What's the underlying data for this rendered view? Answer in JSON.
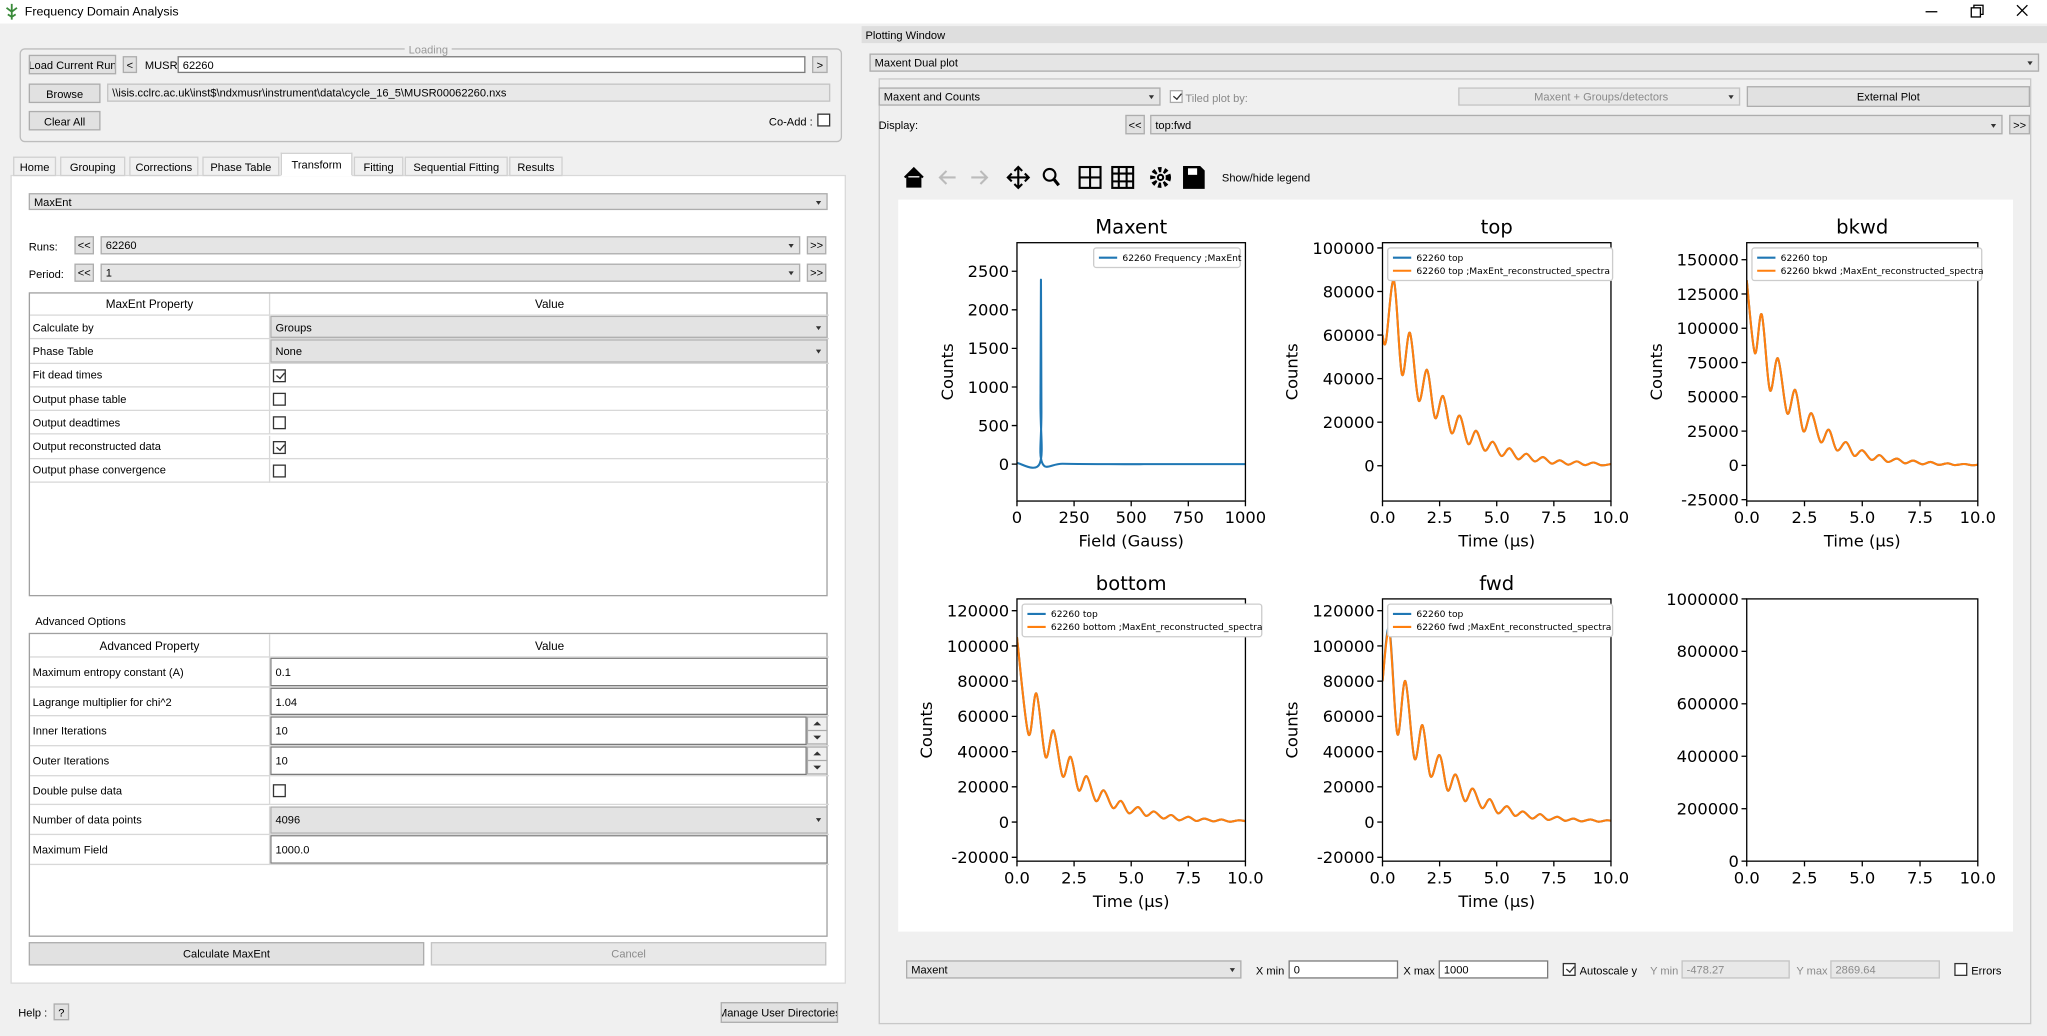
{
  "window_title": "Frequency Domain Analysis",
  "loading": {
    "title": "Loading",
    "load_button": "Load Current Run",
    "prev": "<",
    "instrument": "MUSR",
    "run": "62260",
    "next": ">",
    "browse": "Browse",
    "path": "\\\\isis.cclrc.ac.uk\\inst$\\ndxmusr\\instrument\\data\\cycle_16_5\\MUSR00062260.nxs",
    "clear": "Clear All",
    "coadd": "Co-Add :",
    "coadd_checked": false
  },
  "tabs": [
    "Home",
    "Grouping",
    "Corrections",
    "Phase Table",
    "Transform",
    "Fitting",
    "Sequential Fitting",
    "Results"
  ],
  "transform": {
    "method": "MaxEnt",
    "runs": {
      "label": "Runs:",
      "prev": "<<",
      "value": "62260",
      "next": ">>"
    },
    "period": {
      "label": "Period:",
      "prev": "<<",
      "value": "1",
      "next": ">>"
    },
    "properties": {
      "headers": [
        "MaxEnt Property",
        "Value"
      ],
      "rows": [
        {
          "name": "Calculate by",
          "widget": "combo",
          "value": "Groups"
        },
        {
          "name": "Phase Table",
          "widget": "combo",
          "value": "None"
        },
        {
          "name": "Fit dead times",
          "widget": "check",
          "checked": true
        },
        {
          "name": "Output phase table",
          "widget": "check",
          "checked": false
        },
        {
          "name": "Output deadtimes",
          "widget": "check",
          "checked": false
        },
        {
          "name": "Output reconstructed data",
          "widget": "check",
          "checked": true
        },
        {
          "name": "Output phase convergence",
          "widget": "check",
          "checked": false
        }
      ]
    },
    "advanced": {
      "title": "Advanced Options",
      "headers": [
        "Advanced Property",
        "Value"
      ],
      "rows": [
        {
          "name": "Maximum entropy constant (A)",
          "widget": "text",
          "value": "0.1"
        },
        {
          "name": "Lagrange multiplier for chi^2",
          "widget": "text",
          "value": "1.04"
        },
        {
          "name": "Inner Iterations",
          "widget": "spin",
          "value": "10"
        },
        {
          "name": "Outer Iterations",
          "widget": "spin",
          "value": "10"
        },
        {
          "name": "Double pulse data",
          "widget": "check",
          "checked": false
        },
        {
          "name": "Number of data points",
          "widget": "combo",
          "value": "4096"
        },
        {
          "name": "Maximum Field",
          "widget": "text",
          "value": "1000.0"
        }
      ]
    },
    "calculate": "Calculate MaxEnt",
    "cancel": "Cancel"
  },
  "help": {
    "label": "Help :",
    "button": "?"
  },
  "manage_dirs": "Manage User Directories",
  "plotting_window": {
    "title": "Plotting Window",
    "mode": "Maxent Dual plot",
    "plot_type": "Maxent and Counts",
    "tiled_checked": true,
    "tiled_label": "Tiled plot by:",
    "tiled_value": "Maxent + Groups/detectors",
    "external": "External Plot",
    "display_label": "Display:",
    "display_prev": "<<",
    "display_value": "top:fwd",
    "display_next": ">>",
    "legend_toggle": "Show/hide legend",
    "controls": {
      "axis": "Maxent",
      "xmin_label": "X min",
      "xmin": "0",
      "xmax_label": "X max",
      "xmax": "1000",
      "autoscale_checked": true,
      "autoscale": "Autoscale y",
      "ymin_label": "Y min",
      "ymin": "-478.27",
      "ymax_label": "Y max",
      "ymax": "2869.64",
      "errors_checked": false,
      "errors": "Errors"
    }
  },
  "chart_data": [
    {
      "type": "line",
      "title": "Maxent",
      "xlabel": "Field (Gauss)",
      "ylabel": "Counts",
      "legend": "upper right",
      "x": [
        0,
        100,
        103,
        105,
        107,
        110,
        200,
        400,
        600,
        800,
        1000
      ],
      "xlim": [
        0,
        1000
      ],
      "xticks": [
        0,
        250,
        500,
        750,
        1000
      ],
      "ylim": [
        -478.27,
        2869.64
      ],
      "yticks": [
        0,
        500,
        1000,
        1500,
        2000,
        2500
      ],
      "series": [
        {
          "name": "62260 Frequency ;MaxEnt",
          "color": "#1f77b4",
          "values": [
            15,
            10,
            800,
            2390,
            700,
            20,
            5,
            0,
            0,
            0,
            0
          ]
        }
      ]
    },
    {
      "type": "line",
      "title": "top",
      "xlabel": "Time (μs)",
      "ylabel": "Counts",
      "legend": "upper left",
      "x": [
        0,
        0.15,
        0.5,
        0.85,
        1.2,
        1.58,
        1.95,
        2.3,
        2.65,
        3.02,
        3.38,
        3.75,
        4.1,
        4.47,
        4.83,
        5.2,
        5.56,
        5.93,
        6.3,
        6.66,
        7.03,
        7.4,
        7.76,
        8.13,
        8.5,
        8.86,
        9.23,
        9.6,
        10
      ],
      "xlim": [
        0,
        10
      ],
      "xticks": [
        {
          "value": 0,
          "label": "0.0"
        },
        2.5,
        {
          "value": 5,
          "label": "5.0"
        },
        7.5,
        {
          "value": 10,
          "label": "10.0"
        }
      ],
      "ylim": [
        -16200,
        102400
      ],
      "yticks": [
        0,
        20000,
        40000,
        60000,
        80000,
        100000
      ],
      "series": [
        {
          "name": "62260 top",
          "color": "#1f77b4",
          "values": [
            60000,
            57000,
            85000,
            42000,
            61000,
            30000,
            44000,
            22000,
            32000,
            15000,
            23000,
            10000,
            16000,
            7000,
            11000,
            4500,
            8000,
            3000,
            5500,
            2000,
            4000,
            1000,
            2500,
            500,
            2000,
            300,
            1500,
            200,
            800
          ]
        },
        {
          "name": "62260 top ;MaxEnt_reconstructed_spectra",
          "color": "#ff7f0e",
          "values": [
            60000,
            57000,
            85000,
            42000,
            61000,
            30000,
            44000,
            22000,
            32000,
            15000,
            23000,
            10000,
            16000,
            7000,
            11000,
            4500,
            8000,
            3000,
            5500,
            2000,
            4000,
            1000,
            2500,
            500,
            2000,
            300,
            1500,
            200,
            800
          ]
        }
      ]
    },
    {
      "type": "line",
      "title": "bkwd",
      "xlabel": "Time (μs)",
      "ylabel": "Counts",
      "legend": "upper left",
      "x": [
        0,
        0.35,
        0.65,
        1.0,
        1.35,
        1.75,
        2.1,
        2.45,
        2.8,
        3.2,
        3.55,
        3.9,
        4.3,
        4.65,
        5.0,
        5.4,
        5.75,
        6.1,
        6.5,
        6.85,
        7.2,
        7.6,
        7.95,
        8.3,
        8.7,
        9.0,
        9.4,
        9.75,
        10
      ],
      "xlim": [
        0,
        10
      ],
      "xticks": [
        {
          "value": 0,
          "label": "0.0"
        },
        2.5,
        {
          "value": 5,
          "label": "5.0"
        },
        7.5,
        {
          "value": 10,
          "label": "10.0"
        }
      ],
      "ylim": [
        -26000,
        162400
      ],
      "yticks": [
        -25000,
        0,
        25000,
        50000,
        75000,
        100000,
        125000,
        150000
      ],
      "series": [
        {
          "name": "62260 top",
          "color": "#1f77b4",
          "values": [
            135000,
            82000,
            110000,
            55000,
            78000,
            38000,
            55000,
            25000,
            38000,
            17000,
            26000,
            11000,
            17000,
            7000,
            11000,
            4000,
            7500,
            2500,
            5000,
            1500,
            3500,
            800,
            2500,
            400,
            1500,
            200,
            1000,
            100,
            500
          ]
        },
        {
          "name": "62260 bkwd ;MaxEnt_reconstructed_spectra",
          "color": "#ff7f0e",
          "values": [
            135000,
            82000,
            110000,
            55000,
            78000,
            38000,
            55000,
            25000,
            38000,
            17000,
            26000,
            11000,
            17000,
            7000,
            11000,
            4000,
            7500,
            2500,
            5000,
            1500,
            3500,
            800,
            2500,
            400,
            1500,
            200,
            1000,
            100,
            500
          ]
        }
      ]
    },
    {
      "type": "line",
      "title": "bottom",
      "xlabel": "Time (μs)",
      "ylabel": "Counts",
      "legend": "upper left",
      "x": [
        0,
        0.5,
        0.85,
        1.25,
        1.6,
        2.0,
        2.35,
        2.7,
        3.05,
        3.45,
        3.8,
        4.2,
        4.55,
        4.9,
        5.3,
        5.65,
        6.0,
        6.4,
        6.75,
        7.1,
        7.5,
        7.85,
        8.2,
        8.6,
        8.95,
        9.3,
        9.7,
        10
      ],
      "xlim": [
        0,
        10
      ],
      "xticks": [
        {
          "value": 0,
          "label": "0.0"
        },
        2.5,
        {
          "value": 5,
          "label": "5.0"
        },
        7.5,
        {
          "value": 10,
          "label": "10.0"
        }
      ],
      "ylim": [
        -22200,
        126700
      ],
      "yticks": [
        -20000,
        0,
        20000,
        40000,
        60000,
        80000,
        100000,
        120000
      ],
      "series": [
        {
          "name": "62260 top",
          "color": "#1f77b4",
          "values": [
            105000,
            50000,
            73000,
            37000,
            52000,
            26000,
            37000,
            18000,
            26000,
            12000,
            18000,
            8000,
            12000,
            5000,
            8500,
            3500,
            6000,
            2000,
            4000,
            1000,
            3000,
            600,
            2000,
            400,
            1500,
            200,
            1000,
            500
          ]
        },
        {
          "name": "62260 bottom ;MaxEnt_reconstructed_spectra",
          "color": "#ff7f0e",
          "values": [
            105000,
            50000,
            73000,
            37000,
            52000,
            26000,
            37000,
            18000,
            26000,
            12000,
            18000,
            8000,
            12000,
            5000,
            8500,
            3500,
            6000,
            2000,
            4000,
            1000,
            3000,
            600,
            2000,
            400,
            1500,
            200,
            1000,
            500
          ]
        }
      ]
    },
    {
      "type": "line",
      "title": "fwd",
      "xlabel": "Time (μs)",
      "ylabel": "Counts",
      "legend": "upper left",
      "x": [
        0,
        0.3,
        0.65,
        1.0,
        1.4,
        1.75,
        2.1,
        2.5,
        2.85,
        3.2,
        3.6,
        3.95,
        4.35,
        4.7,
        5.05,
        5.45,
        5.8,
        6.15,
        6.55,
        6.9,
        7.25,
        7.65,
        8.0,
        8.35,
        8.7,
        9.1,
        9.45,
        9.8,
        10
      ],
      "xlim": [
        0,
        10
      ],
      "xticks": [
        {
          "value": 0,
          "label": "0.0"
        },
        2.5,
        {
          "value": 5,
          "label": "5.0"
        },
        7.5,
        {
          "value": 10,
          "label": "10.0"
        }
      ],
      "ylim": [
        -22200,
        126700
      ],
      "yticks": [
        -20000,
        0,
        20000,
        40000,
        60000,
        80000,
        100000,
        120000
      ],
      "series": [
        {
          "name": "62260 top",
          "color": "#1f77b4",
          "values": [
            80000,
            110000,
            50000,
            80000,
            36000,
            55000,
            26000,
            38000,
            18000,
            27000,
            12000,
            19000,
            8000,
            13000,
            5000,
            9000,
            3500,
            6000,
            2000,
            4500,
            1200,
            3000,
            700,
            2000,
            400,
            1500,
            200,
            1000,
            800
          ]
        },
        {
          "name": "62260 fwd ;MaxEnt_reconstructed_spectra",
          "color": "#ff7f0e",
          "values": [
            80000,
            108000,
            50000,
            80000,
            36000,
            55000,
            26000,
            38000,
            18000,
            27000,
            12000,
            19000,
            8000,
            13000,
            5000,
            9000,
            3500,
            6000,
            2000,
            4500,
            1200,
            3000,
            700,
            2000,
            400,
            1500,
            200,
            1000,
            800
          ]
        }
      ]
    },
    {
      "type": "line",
      "x": [],
      "xlim": [
        0,
        10
      ],
      "xticks": [
        {
          "value": 0,
          "label": "0.0"
        },
        2.5,
        {
          "value": 5,
          "label": "5.0"
        },
        7.5,
        {
          "value": 10,
          "label": "10.0"
        }
      ],
      "ylim": [
        0,
        1000000
      ],
      "yticks": [
        0,
        200000,
        400000,
        600000,
        800000,
        1000000
      ],
      "series": []
    }
  ]
}
